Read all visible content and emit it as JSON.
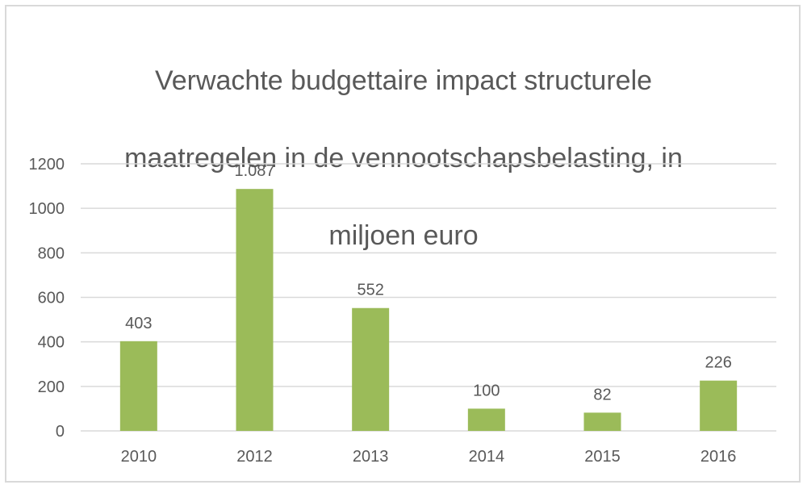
{
  "chart_data": {
    "type": "bar",
    "title": "Verwachte budgettaire impact structurele maatregelen in de vennootschapsbelasting, in miljoen euro",
    "title_lines": [
      "Verwachte budgettaire impact structurele",
      "maatregelen in de vennootschapsbelasting,  in",
      "miljoen euro"
    ],
    "categories": [
      "2010",
      "2012",
      "2013",
      "2014",
      "2015",
      "2016"
    ],
    "values": [
      403,
      1087,
      552,
      100,
      82,
      226
    ],
    "data_labels": [
      "403",
      "1.087",
      "552",
      "100",
      "82",
      "226"
    ],
    "xlabel": "",
    "ylabel": "",
    "ylim": [
      0,
      1200
    ],
    "yticks": [
      "0",
      "200",
      "400",
      "600",
      "800",
      "1000",
      "1200"
    ],
    "grid": true,
    "legend": "none",
    "bar_color": "#9bbb59",
    "grid_color": "#d9d9d9",
    "text_color": "#595959"
  }
}
